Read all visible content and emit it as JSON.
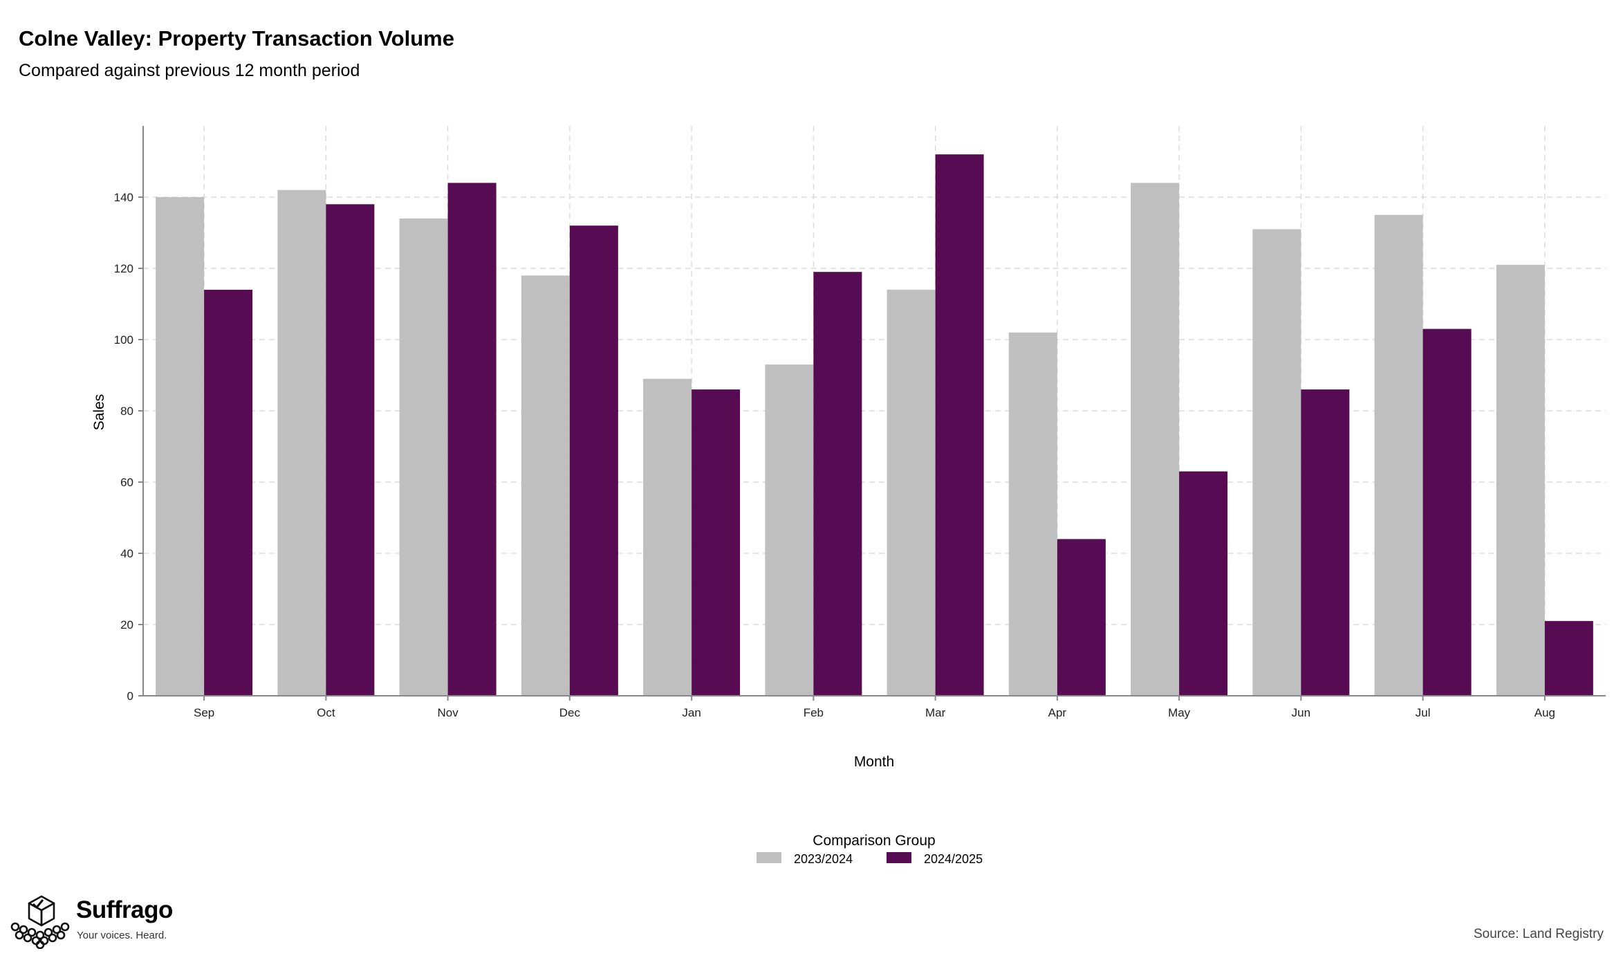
{
  "chart_data": {
    "type": "bar",
    "title": "Colne Valley: Property Transaction Volume",
    "subtitle": "Compared against previous 12 month period",
    "xlabel": "Month",
    "ylabel": "Sales",
    "categories": [
      "Sep",
      "Oct",
      "Nov",
      "Dec",
      "Jan",
      "Feb",
      "Mar",
      "Apr",
      "May",
      "Jun",
      "Jul",
      "Aug"
    ],
    "series": [
      {
        "name": "2023/2024",
        "color": "#bfbfbf",
        "values": [
          140,
          142,
          134,
          118,
          89,
          93,
          114,
          102,
          144,
          131,
          135,
          121
        ]
      },
      {
        "name": "2024/2025",
        "color": "#560b52",
        "values": [
          114,
          138,
          144,
          132,
          86,
          119,
          152,
          44,
          63,
          86,
          103,
          21
        ]
      }
    ],
    "ylim": [
      0,
      160
    ],
    "yticks": [
      0,
      20,
      40,
      60,
      80,
      100,
      120,
      140
    ],
    "grid": true,
    "legend": {
      "title": "Comparison Group",
      "position": "bottom-center"
    }
  },
  "branding": {
    "name": "Suffrago",
    "tagline": "Your voices. Heard.",
    "logo_icon": "ballot-box-crowd-icon"
  },
  "source": "Source: Land Registry"
}
